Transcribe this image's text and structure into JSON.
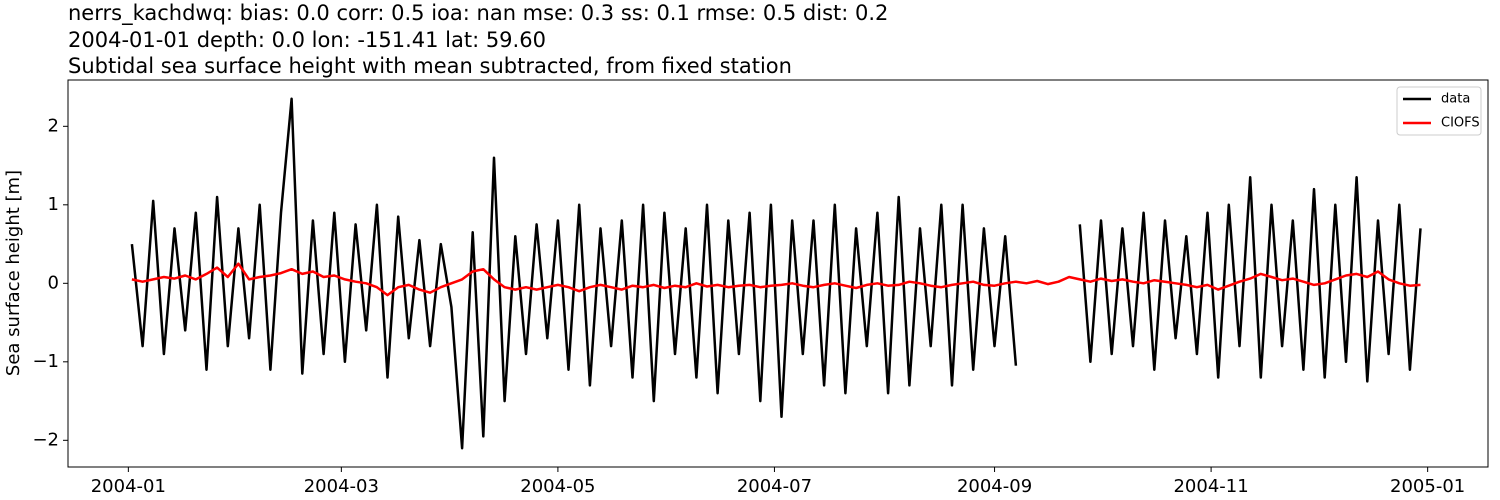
{
  "chart_data": {
    "type": "line",
    "title": [
      "nerrs_kachdwq: bias: 0.0  corr: 0.5  ioa: nan  mse: 0.3  ss: 0.1  rmse: 0.5  dist: 0.2",
      "2004-01-01 depth: 0.0 lon: -151.41 lat: 59.60",
      "Subtidal sea surface height with mean subtracted, from fixed station"
    ],
    "y_label": "Sea surface height [m]",
    "x": [
      1,
      4,
      7,
      10,
      13,
      16,
      19,
      22,
      25,
      28,
      31,
      34,
      37,
      40,
      43,
      46,
      49,
      52,
      55,
      58,
      61,
      64,
      67,
      70,
      73,
      76,
      79,
      82,
      85,
      88,
      91,
      94,
      97,
      100,
      103,
      106,
      109,
      112,
      115,
      118,
      121,
      124,
      127,
      130,
      133,
      136,
      139,
      142,
      145,
      148,
      151,
      154,
      157,
      160,
      163,
      166,
      169,
      172,
      175,
      178,
      181,
      184,
      187,
      190,
      193,
      196,
      199,
      202,
      205,
      208,
      211,
      214,
      217,
      220,
      223,
      226,
      229,
      232,
      235,
      238,
      241,
      244,
      247,
      250,
      253,
      256,
      259,
      262,
      265,
      268,
      271,
      274,
      277,
      280,
      283,
      286,
      289,
      292,
      295,
      298,
      301,
      304,
      307,
      310,
      313,
      316,
      319,
      322,
      325,
      328,
      331,
      334,
      337,
      340,
      343,
      346,
      349,
      352,
      355,
      358,
      361,
      364
    ],
    "series": [
      {
        "name": "data",
        "color": "#000000",
        "values": [
          0.5,
          -0.8,
          1.05,
          -0.9,
          0.7,
          -0.6,
          0.9,
          -1.1,
          1.1,
          -0.8,
          0.7,
          -0.7,
          1.0,
          -1.1,
          0.9,
          2.35,
          -1.15,
          0.8,
          -0.9,
          0.9,
          -1.0,
          0.75,
          -0.6,
          1.0,
          -1.2,
          0.85,
          -0.7,
          0.55,
          -0.8,
          0.5,
          -0.3,
          -2.1,
          0.65,
          -1.95,
          1.6,
          -1.5,
          0.6,
          -0.9,
          0.75,
          -0.7,
          0.8,
          -1.1,
          1.0,
          -1.3,
          0.7,
          -0.8,
          0.8,
          -1.2,
          1.0,
          -1.5,
          0.9,
          -0.9,
          0.7,
          -1.2,
          1.0,
          -1.4,
          0.8,
          -0.9,
          0.9,
          -1.5,
          1.0,
          -1.7,
          0.8,
          -0.9,
          0.8,
          -1.3,
          1.0,
          -1.4,
          0.7,
          -0.8,
          0.9,
          -1.4,
          1.1,
          -1.3,
          0.7,
          -0.8,
          1.0,
          -1.3,
          1.0,
          -1.1,
          0.7,
          -0.8,
          0.6,
          -1.05,
          null,
          null,
          null,
          null,
          null,
          0.75,
          -1.0,
          0.8,
          -0.9,
          0.7,
          -0.8,
          0.9,
          -1.1,
          0.8,
          -0.7,
          0.6,
          -0.9,
          0.9,
          -1.2,
          1.0,
          -0.8,
          1.35,
          -1.2,
          1.0,
          -0.8,
          0.8,
          -1.1,
          1.2,
          -1.2,
          1.0,
          -1.0,
          1.35,
          -1.25,
          0.8,
          -0.9,
          1.0,
          -1.1,
          0.7
        ]
      },
      {
        "name": "CIOFS",
        "color": "#ff0000",
        "values": [
          0.05,
          0.02,
          0.05,
          0.08,
          0.06,
          0.1,
          0.05,
          0.12,
          0.2,
          0.08,
          0.25,
          0.05,
          0.08,
          0.1,
          0.13,
          0.18,
          0.12,
          0.15,
          0.08,
          0.1,
          0.05,
          0.02,
          0.0,
          -0.05,
          -0.15,
          -0.05,
          -0.02,
          -0.08,
          -0.12,
          -0.05,
          0.0,
          0.05,
          0.15,
          0.18,
          0.05,
          -0.05,
          -0.08,
          -0.05,
          -0.08,
          -0.05,
          -0.02,
          -0.05,
          -0.1,
          -0.05,
          -0.02,
          -0.05,
          -0.08,
          -0.03,
          -0.05,
          -0.02,
          -0.06,
          -0.03,
          -0.05,
          0.0,
          -0.04,
          -0.02,
          -0.05,
          -0.03,
          -0.02,
          -0.05,
          -0.03,
          -0.02,
          0.0,
          -0.03,
          -0.05,
          -0.02,
          0.0,
          -0.03,
          -0.06,
          -0.02,
          0.0,
          -0.03,
          -0.02,
          0.02,
          0.0,
          -0.03,
          -0.05,
          -0.02,
          0.0,
          0.02,
          -0.02,
          -0.03,
          0.0,
          0.02,
          0.0,
          0.03,
          -0.01,
          0.02,
          0.08,
          0.05,
          0.02,
          0.06,
          0.03,
          0.05,
          0.02,
          0.0,
          0.04,
          0.02,
          0.0,
          -0.02,
          -0.05,
          -0.02,
          -0.08,
          -0.03,
          0.02,
          0.06,
          0.12,
          0.08,
          0.04,
          0.06,
          0.02,
          -0.02,
          0.0,
          0.05,
          0.1,
          0.12,
          0.08,
          0.15,
          0.05,
          0.0,
          -0.03,
          -0.02
        ]
      }
    ],
    "xlim": [
      -17,
      383
    ],
    "xticks": [
      {
        "value": 0,
        "label": "2004-01"
      },
      {
        "value": 60,
        "label": "2004-03"
      },
      {
        "value": 121,
        "label": "2004-05"
      },
      {
        "value": 182,
        "label": "2004-07"
      },
      {
        "value": 244,
        "label": "2004-09"
      },
      {
        "value": 305,
        "label": "2004-11"
      },
      {
        "value": 366,
        "label": "2005-01"
      }
    ],
    "ylim": [
      -2.34,
      2.59
    ],
    "yticks": [
      {
        "value": -2,
        "label": "−2"
      },
      {
        "value": -1,
        "label": "−1"
      },
      0,
      1,
      2
    ],
    "grid": false,
    "legend": "upper right"
  }
}
